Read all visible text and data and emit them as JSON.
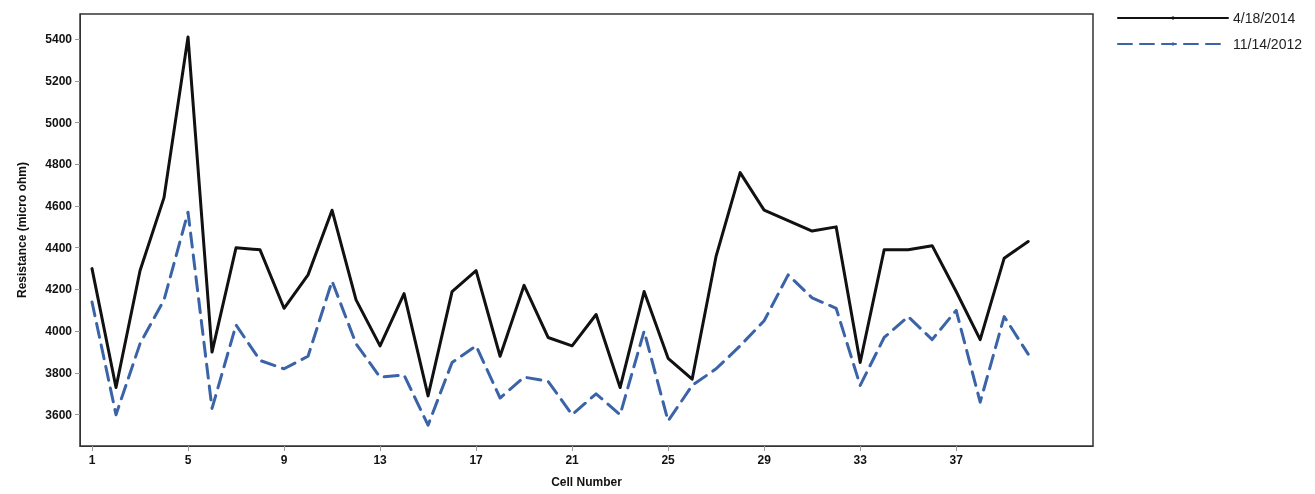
{
  "chart_data": {
    "type": "line",
    "xlabel": "Cell Number",
    "ylabel": "Resistance (micro ohm)",
    "x": [
      1,
      2,
      3,
      4,
      5,
      6,
      7,
      8,
      9,
      10,
      11,
      12,
      13,
      14,
      15,
      16,
      17,
      18,
      19,
      20,
      21,
      22,
      23,
      24,
      25,
      26,
      27,
      28,
      29,
      30,
      31,
      32,
      33,
      34,
      35,
      36,
      37,
      38,
      39,
      40
    ],
    "xlim": [
      0.5,
      42.7
    ],
    "xticks": [
      1,
      5,
      9,
      13,
      17,
      21,
      25,
      29,
      33,
      37
    ],
    "ylim": [
      3450,
      5520
    ],
    "yticks": [
      3600,
      3800,
      4000,
      4200,
      4400,
      4600,
      4800,
      5000,
      5200,
      5400
    ],
    "grid": false,
    "legend": "top right",
    "marker": "none",
    "series": [
      {
        "name": "4/18/2014",
        "color": "#111111",
        "line_style": "solid",
        "values": [
          4300,
          3730,
          4290,
          4640,
          5410,
          3900,
          4400,
          4390,
          4110,
          4270,
          4580,
          4150,
          3930,
          4180,
          3690,
          4190,
          4290,
          3880,
          4220,
          3970,
          3930,
          4080,
          3730,
          4190,
          3870,
          3770,
          4360,
          4760,
          4580,
          4530,
          4480,
          4500,
          3850,
          4390,
          4390,
          4410,
          4190,
          3960,
          4350,
          4430
        ]
      },
      {
        "name": "11/14/2012",
        "color": "#3a63a8",
        "line_style": "dashed",
        "values": [
          4140,
          3600,
          3940,
          4150,
          4570,
          3630,
          4030,
          3860,
          3820,
          3880,
          4240,
          3940,
          3780,
          3790,
          3550,
          3850,
          3930,
          3680,
          3780,
          3760,
          3600,
          3700,
          3600,
          4000,
          3570,
          3740,
          3820,
          3930,
          4050,
          4270,
          4160,
          4110,
          3740,
          3970,
          4070,
          3960,
          4100,
          3660,
          4070,
          3890
        ]
      }
    ]
  }
}
